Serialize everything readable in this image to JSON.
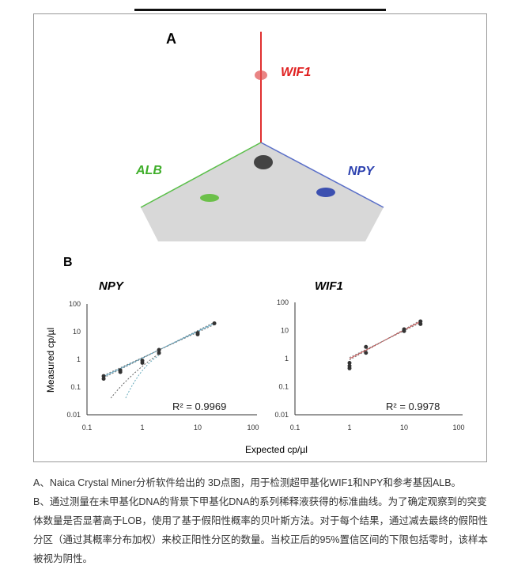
{
  "panel_a": {
    "label": "A",
    "genes": [
      {
        "name": "WIF1",
        "color": "#e02020"
      },
      {
        "name": "ALB",
        "color": "#3fae2a"
      },
      {
        "name": "NPY",
        "color": "#2a3fae"
      }
    ]
  },
  "panel_b": {
    "label": "B",
    "shared_xlabel": "Expected cp/µl"
  },
  "chart_data": [
    {
      "type": "scatter",
      "title": "NPY",
      "xlabel": "Expected cp/µl",
      "ylabel": "Measured cp/µl",
      "xscale": "log",
      "yscale": "log",
      "xlim": [
        0.1,
        100
      ],
      "ylim": [
        0.01,
        100
      ],
      "xticks": [
        "0.1",
        "1",
        "10",
        "100"
      ],
      "yticks": [
        "0.01",
        "0.1",
        "1",
        "10",
        "100"
      ],
      "annotation": "R² = 0.9969",
      "fit_color": "#5aa9c8",
      "points": [
        [
          0.2,
          0.2
        ],
        [
          0.2,
          0.25
        ],
        [
          0.4,
          0.35
        ],
        [
          0.4,
          0.4
        ],
        [
          1,
          0.75
        ],
        [
          1,
          0.9
        ],
        [
          2,
          1.7
        ],
        [
          2,
          2.2
        ],
        [
          10,
          8
        ],
        [
          10,
          9
        ],
        [
          20,
          20
        ]
      ]
    },
    {
      "type": "scatter",
      "title": "WIF1",
      "xlabel": "Expected cp/µl",
      "ylabel": "",
      "xscale": "log",
      "yscale": "log",
      "xlim": [
        0.1,
        100
      ],
      "ylim": [
        0.01,
        100
      ],
      "xticks": [
        "0.1",
        "1",
        "10",
        "100"
      ],
      "yticks": [
        "0.01",
        "0.1",
        "1",
        "10",
        "100"
      ],
      "annotation": "R² = 0.9978",
      "fit_color": "#d05050",
      "points": [
        [
          1,
          0.45
        ],
        [
          1,
          0.55
        ],
        [
          1,
          0.7
        ],
        [
          2,
          1.6
        ],
        [
          2,
          2.6
        ],
        [
          10,
          9.5
        ],
        [
          10,
          11
        ],
        [
          20,
          17
        ],
        [
          20,
          21
        ]
      ]
    }
  ],
  "caption": {
    "line1": "A、Naica Crystal Miner分析软件给出的 3D点图，用于检测超甲基化WIF1和NPY和参考基因ALB。",
    "line2": "B、通过测量在未甲基化DNA的背景下甲基化DNA的系列稀释液获得的标准曲线。为了确定观察到的突变体数量是否显著高于LOB，使用了基于假阳性概率的贝叶斯方法。对于每个结果，通过减去最终的假阳性分区（通过其概率分布加权）来校正阳性分区的数量。当校正后的95%置信区间的下限包括零时，该样本被视为阴性。"
  }
}
